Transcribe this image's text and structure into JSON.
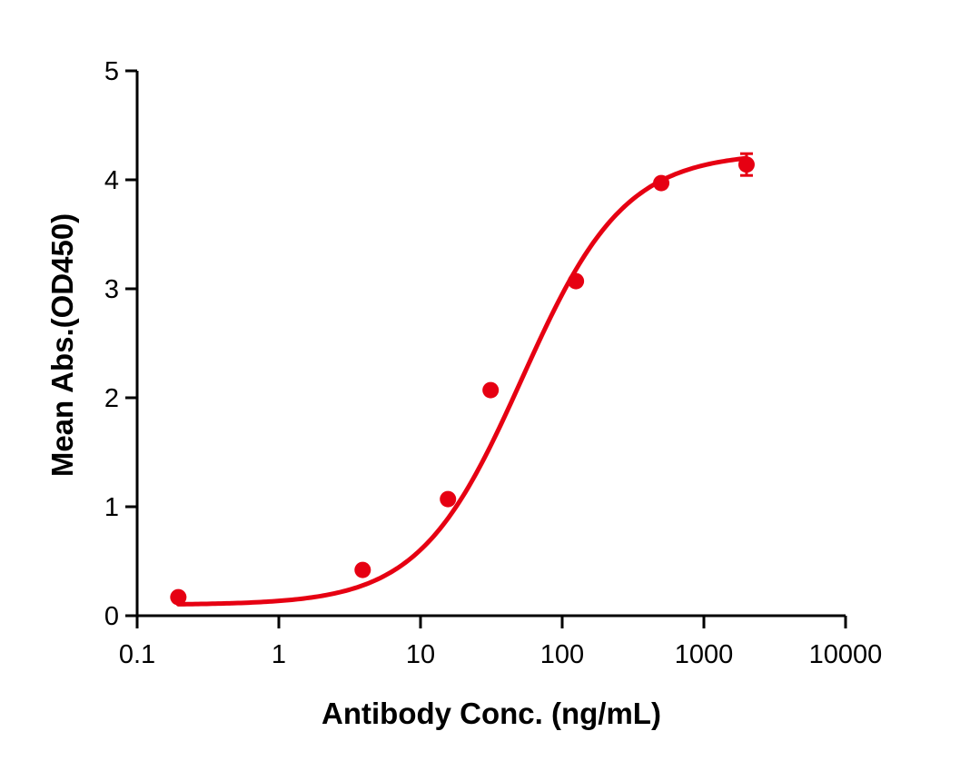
{
  "chart_data": {
    "type": "scatter",
    "title": "",
    "xlabel": "Antibody Conc. (ng/mL)",
    "ylabel": "Mean Abs.(OD450)",
    "xscale": "log",
    "xlim": [
      0.1,
      10000
    ],
    "ylim": [
      0,
      5
    ],
    "x_ticks": [
      "0.1",
      "1",
      "10",
      "100",
      "1000",
      "10000"
    ],
    "y_ticks": [
      "0",
      "1",
      "2",
      "3",
      "4",
      "5"
    ],
    "grid": false,
    "legend": null,
    "series": [
      {
        "name": "Mean Abs.(OD450)",
        "color": "#e60012",
        "marker": "circle",
        "fit": "4PL sigmoidal curve",
        "points": [
          {
            "x": 0.1953,
            "y": 0.17,
            "err": 0.0
          },
          {
            "x": 3.906,
            "y": 0.42,
            "err": 0.0
          },
          {
            "x": 15.625,
            "y": 1.07,
            "err": 0.0
          },
          {
            "x": 31.25,
            "y": 2.07,
            "err": 0.0
          },
          {
            "x": 125,
            "y": 3.07,
            "err": 0.0
          },
          {
            "x": 500,
            "y": 3.97,
            "err": 0.0
          },
          {
            "x": 2000,
            "y": 4.14,
            "err": 0.1
          }
        ],
        "curve_params": {
          "bottom": 0.1,
          "top": 4.25,
          "ec50": 52,
          "hill": 1.2
        }
      }
    ]
  }
}
